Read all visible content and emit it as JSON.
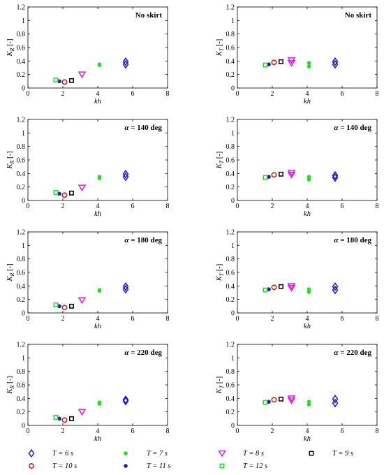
{
  "colors": {
    "t6": "#1a1ad6",
    "t7": "#22dd22",
    "t8": "#e619e6",
    "t9": "#000000",
    "t10": "#e01010",
    "t11": "#1a1ad6",
    "t12": "#22dd22"
  },
  "legend": [
    {
      "key": "t6",
      "marker": "diamond",
      "label": "T = 6 s"
    },
    {
      "key": "t7",
      "marker": "dot",
      "label": "T = 7 s"
    },
    {
      "key": "t8",
      "marker": "triangle-down",
      "label": "T = 8 s"
    },
    {
      "key": "t9",
      "marker": "square",
      "label": "T = 9 s"
    },
    {
      "key": "t10",
      "marker": "circle",
      "label": "T = 10 s"
    },
    {
      "key": "t11",
      "marker": "dot",
      "label": "T = 11 s"
    },
    {
      "key": "t12",
      "marker": "square",
      "label": "T = 12 s"
    }
  ],
  "chart_data": [
    {
      "type": "scatter",
      "annotation": "No skirt",
      "ylabel": "K_R [-]",
      "xlabel": "kh",
      "xlim": [
        0,
        8
      ],
      "ylim": [
        0,
        1.2
      ],
      "xticks": [
        "0",
        "2",
        "4",
        "6",
        "8"
      ],
      "yticks": [
        "0",
        "0.2",
        "0.4",
        "0.6",
        "0.8",
        "1",
        "1.2"
      ],
      "series": [
        {
          "key": "t6",
          "points": [
            [
              5.6,
              0.35
            ],
            [
              5.6,
              0.39
            ]
          ]
        },
        {
          "key": "t7",
          "points": [
            [
              4.1,
              0.34
            ],
            [
              4.1,
              0.35
            ]
          ]
        },
        {
          "key": "t8",
          "points": [
            [
              3.1,
              0.2
            ]
          ]
        },
        {
          "key": "t9",
          "points": [
            [
              2.5,
              0.11
            ]
          ]
        },
        {
          "key": "t10",
          "points": [
            [
              2.1,
              0.09
            ]
          ]
        },
        {
          "key": "t11",
          "points": [
            [
              1.8,
              0.1
            ]
          ]
        },
        {
          "key": "t12",
          "points": [
            [
              1.6,
              0.12
            ]
          ]
        }
      ]
    },
    {
      "type": "scatter",
      "annotation": "No skirt",
      "ylabel": "K_T [-]",
      "xlabel": "kh",
      "xlim": [
        0,
        8
      ],
      "ylim": [
        0,
        1.2
      ],
      "xticks": [
        "0",
        "2",
        "4",
        "6",
        "8"
      ],
      "yticks": [
        "0",
        "0.2",
        "0.4",
        "0.6",
        "0.8",
        "1",
        "1.2"
      ],
      "series": [
        {
          "key": "t6",
          "points": [
            [
              5.6,
              0.35
            ],
            [
              5.6,
              0.39
            ]
          ]
        },
        {
          "key": "t7",
          "points": [
            [
              4.1,
              0.32
            ],
            [
              4.1,
              0.37
            ]
          ]
        },
        {
          "key": "t8",
          "points": [
            [
              3.1,
              0.37
            ],
            [
              3.1,
              0.41
            ]
          ]
        },
        {
          "key": "t9",
          "points": [
            [
              2.5,
              0.39
            ]
          ]
        },
        {
          "key": "t10",
          "points": [
            [
              2.1,
              0.38
            ]
          ]
        },
        {
          "key": "t11",
          "points": [
            [
              1.8,
              0.35
            ]
          ]
        },
        {
          "key": "t12",
          "points": [
            [
              1.6,
              0.34
            ]
          ]
        }
      ]
    },
    {
      "type": "scatter",
      "annotation": "α = 140 deg",
      "ylabel": "K_R [-]",
      "xlabel": "kh",
      "xlim": [
        0,
        8
      ],
      "ylim": [
        0,
        1.2
      ],
      "xticks": [
        "0",
        "2",
        "4",
        "6",
        "8"
      ],
      "yticks": [
        "0",
        "0.2",
        "0.4",
        "0.6",
        "0.8",
        "1",
        "1.2"
      ],
      "series": [
        {
          "key": "t6",
          "points": [
            [
              5.6,
              0.35
            ],
            [
              5.6,
              0.39
            ]
          ]
        },
        {
          "key": "t7",
          "points": [
            [
              4.1,
              0.33
            ],
            [
              4.1,
              0.35
            ]
          ]
        },
        {
          "key": "t8",
          "points": [
            [
              3.1,
              0.19
            ]
          ]
        },
        {
          "key": "t9",
          "points": [
            [
              2.5,
              0.11
            ]
          ]
        },
        {
          "key": "t10",
          "points": [
            [
              2.1,
              0.08
            ]
          ]
        },
        {
          "key": "t11",
          "points": [
            [
              1.8,
              0.1
            ]
          ]
        },
        {
          "key": "t12",
          "points": [
            [
              1.6,
              0.12
            ]
          ]
        }
      ]
    },
    {
      "type": "scatter",
      "annotation": "α = 140 deg",
      "ylabel": "K_T [-]",
      "xlabel": "kh",
      "xlim": [
        0,
        8
      ],
      "ylim": [
        0,
        1.2
      ],
      "xticks": [
        "0",
        "2",
        "4",
        "6",
        "8"
      ],
      "yticks": [
        "0",
        "0.2",
        "0.4",
        "0.6",
        "0.8",
        "1",
        "1.2"
      ],
      "series": [
        {
          "key": "t6",
          "points": [
            [
              5.6,
              0.34
            ],
            [
              5.6,
              0.37
            ]
          ]
        },
        {
          "key": "t7",
          "points": [
            [
              4.1,
              0.31
            ],
            [
              4.1,
              0.35
            ]
          ]
        },
        {
          "key": "t8",
          "points": [
            [
              3.1,
              0.38
            ],
            [
              3.1,
              0.41
            ]
          ]
        },
        {
          "key": "t9",
          "points": [
            [
              2.5,
              0.39
            ]
          ]
        },
        {
          "key": "t10",
          "points": [
            [
              2.1,
              0.38
            ]
          ]
        },
        {
          "key": "t11",
          "points": [
            [
              1.8,
              0.35
            ]
          ]
        },
        {
          "key": "t12",
          "points": [
            [
              1.6,
              0.34
            ]
          ]
        }
      ]
    },
    {
      "type": "scatter",
      "annotation": "α = 180 deg",
      "ylabel": "K_R [-]",
      "xlabel": "kh",
      "xlim": [
        0,
        8
      ],
      "ylim": [
        0,
        1.2
      ],
      "xticks": [
        "0",
        "2",
        "4",
        "6",
        "8"
      ],
      "yticks": [
        "0",
        "0.2",
        "0.4",
        "0.6",
        "0.8",
        "1",
        "1.2"
      ],
      "series": [
        {
          "key": "t6",
          "points": [
            [
              5.6,
              0.35
            ],
            [
              5.6,
              0.39
            ]
          ]
        },
        {
          "key": "t7",
          "points": [
            [
              4.1,
              0.33
            ],
            [
              4.1,
              0.34
            ]
          ]
        },
        {
          "key": "t8",
          "points": [
            [
              3.1,
              0.19
            ]
          ]
        },
        {
          "key": "t9",
          "points": [
            [
              2.5,
              0.1
            ]
          ]
        },
        {
          "key": "t10",
          "points": [
            [
              2.1,
              0.08
            ]
          ]
        },
        {
          "key": "t11",
          "points": [
            [
              1.8,
              0.1
            ]
          ]
        },
        {
          "key": "t12",
          "points": [
            [
              1.6,
              0.12
            ]
          ]
        }
      ]
    },
    {
      "type": "scatter",
      "annotation": "α = 180 deg",
      "ylabel": "K_T [-]",
      "xlabel": "kh",
      "xlim": [
        0,
        8
      ],
      "ylim": [
        0,
        1.2
      ],
      "xticks": [
        "0",
        "2",
        "4",
        "6",
        "8"
      ],
      "yticks": [
        "0",
        "0.2",
        "0.4",
        "0.6",
        "0.8",
        "1",
        "1.2"
      ],
      "series": [
        {
          "key": "t6",
          "points": [
            [
              5.6,
              0.34
            ],
            [
              5.6,
              0.39
            ]
          ]
        },
        {
          "key": "t7",
          "points": [
            [
              4.1,
              0.31
            ],
            [
              4.1,
              0.35
            ]
          ]
        },
        {
          "key": "t8",
          "points": [
            [
              3.1,
              0.37
            ],
            [
              3.1,
              0.4
            ]
          ]
        },
        {
          "key": "t9",
          "points": [
            [
              2.5,
              0.39
            ]
          ]
        },
        {
          "key": "t10",
          "points": [
            [
              2.1,
              0.38
            ]
          ]
        },
        {
          "key": "t11",
          "points": [
            [
              1.8,
              0.35
            ]
          ]
        },
        {
          "key": "t12",
          "points": [
            [
              1.6,
              0.34
            ]
          ]
        }
      ]
    },
    {
      "type": "scatter",
      "annotation": "α = 220 deg",
      "ylabel": "K_R [-]",
      "xlabel": "kh",
      "xlim": [
        0,
        8
      ],
      "ylim": [
        0,
        1.2
      ],
      "xticks": [
        "0",
        "2",
        "4",
        "6",
        "8"
      ],
      "yticks": [
        "0",
        "0.2",
        "0.4",
        "0.6",
        "0.8",
        "1",
        "1.2"
      ],
      "series": [
        {
          "key": "t6",
          "points": [
            [
              5.6,
              0.36
            ],
            [
              5.6,
              0.38
            ]
          ]
        },
        {
          "key": "t7",
          "points": [
            [
              4.1,
              0.32
            ],
            [
              4.1,
              0.34
            ]
          ]
        },
        {
          "key": "t8",
          "points": [
            [
              3.1,
              0.2
            ]
          ]
        },
        {
          "key": "t9",
          "points": [
            [
              2.5,
              0.1
            ]
          ]
        },
        {
          "key": "t10",
          "points": [
            [
              2.1,
              0.08
            ]
          ]
        },
        {
          "key": "t11",
          "points": [
            [
              1.8,
              0.1
            ]
          ]
        },
        {
          "key": "t12",
          "points": [
            [
              1.6,
              0.12
            ]
          ]
        }
      ]
    },
    {
      "type": "scatter",
      "annotation": "α = 220 deg",
      "ylabel": "K_T [-]",
      "xlabel": "kh",
      "xlim": [
        0,
        8
      ],
      "ylim": [
        0,
        1.2
      ],
      "xticks": [
        "0",
        "2",
        "4",
        "6",
        "8"
      ],
      "yticks": [
        "0",
        "0.2",
        "0.4",
        "0.6",
        "0.8",
        "1",
        "1.2"
      ],
      "series": [
        {
          "key": "t6",
          "points": [
            [
              5.6,
              0.33
            ],
            [
              5.6,
              0.39
            ]
          ]
        },
        {
          "key": "t7",
          "points": [
            [
              4.1,
              0.31
            ],
            [
              4.1,
              0.35
            ]
          ]
        },
        {
          "key": "t8",
          "points": [
            [
              3.1,
              0.37
            ],
            [
              3.1,
              0.4
            ]
          ]
        },
        {
          "key": "t9",
          "points": [
            [
              2.5,
              0.39
            ]
          ]
        },
        {
          "key": "t10",
          "points": [
            [
              2.1,
              0.38
            ]
          ]
        },
        {
          "key": "t11",
          "points": [
            [
              1.8,
              0.35
            ]
          ]
        },
        {
          "key": "t12",
          "points": [
            [
              1.6,
              0.34
            ]
          ]
        }
      ]
    }
  ]
}
